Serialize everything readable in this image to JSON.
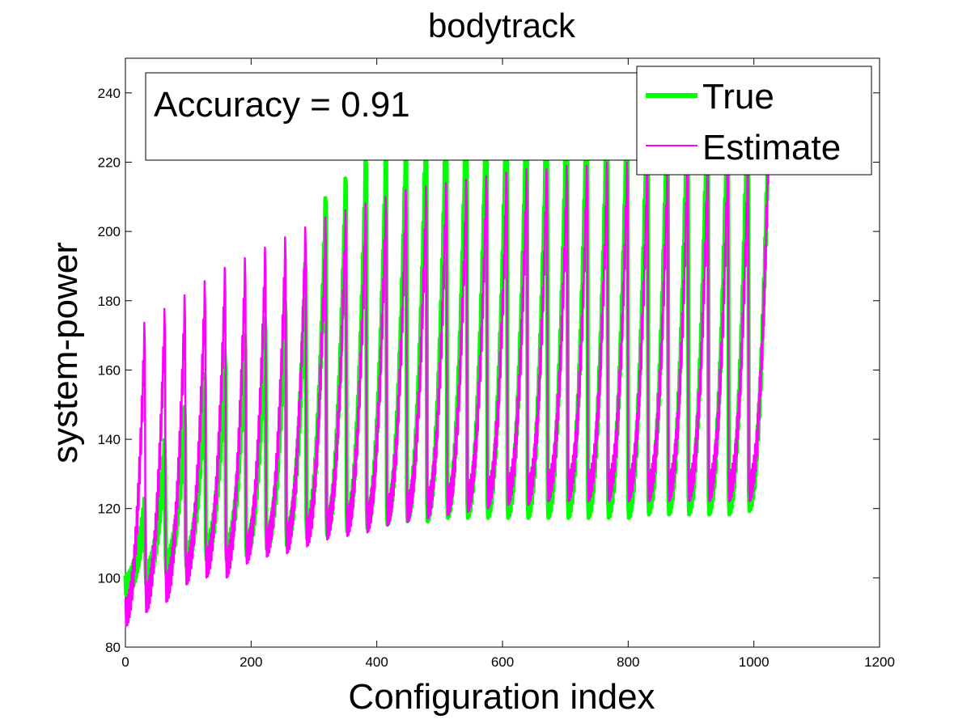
{
  "chart_data": {
    "type": "line",
    "title": "bodytrack",
    "xlabel": "Configuration index",
    "ylabel": "system-power",
    "xlim": [
      0,
      1200
    ],
    "ylim": [
      80,
      250
    ],
    "xticks": [
      0,
      200,
      400,
      600,
      800,
      1000,
      1200
    ],
    "yticks": [
      80,
      100,
      120,
      140,
      160,
      180,
      200,
      220,
      240
    ],
    "xtick_labels": [
      "0",
      "200",
      "400",
      "600",
      "800",
      "1000",
      "1200"
    ],
    "ytick_labels": [
      "80",
      "100",
      "120",
      "140",
      "160",
      "180",
      "200",
      "220",
      "240"
    ],
    "grid": false,
    "annotation": "Accuracy = 0.91",
    "legend_position": "top-right",
    "n_cycles": 32,
    "cycle_length": 32,
    "series": [
      {
        "name": "True",
        "color": "#00ff00",
        "cycle_min": [
          98,
          101,
          104,
          106,
          108,
          108,
          109,
          111,
          112,
          114,
          115,
          116,
          117,
          118,
          119,
          119,
          120,
          120,
          120,
          120,
          120,
          120,
          120,
          120,
          120,
          120,
          121,
          121,
          121,
          121,
          121,
          122
        ],
        "cycle_max": [
          120,
          138,
          148,
          158,
          165,
          170,
          175,
          180,
          192,
          212,
          218,
          224,
          225,
          231,
          236,
          240,
          243,
          243,
          243,
          243,
          242,
          245,
          245,
          243,
          243,
          245,
          243,
          245,
          248,
          245,
          247,
          228
        ]
      },
      {
        "name": "Estimate",
        "color": "#ff00ff",
        "cycle_min": [
          90,
          94,
          97,
          102,
          104,
          104,
          108,
          110,
          111,
          113,
          115,
          116,
          117,
          119,
          120,
          121,
          122,
          123,
          124,
          125,
          125,
          126,
          126,
          126,
          126,
          126,
          126,
          126,
          126,
          126,
          126,
          126
        ],
        "cycle_max": [
          173,
          177,
          181,
          185,
          189,
          192,
          195,
          198,
          201,
          204,
          206,
          208,
          210,
          212,
          213,
          214,
          215,
          216,
          217,
          218,
          218,
          219,
          219,
          220,
          220,
          220,
          220,
          221,
          221,
          221,
          221,
          220
        ]
      }
    ]
  }
}
